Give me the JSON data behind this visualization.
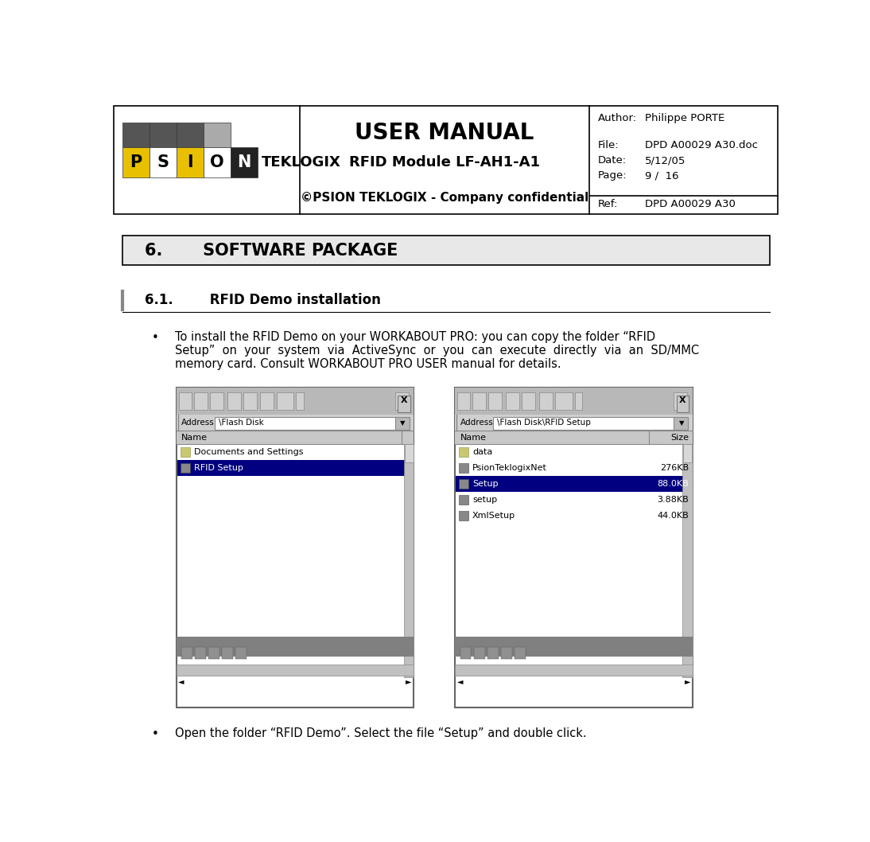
{
  "bg_color": "#ffffff",
  "header": {
    "title": "USER MANUAL",
    "subtitle": "RFID Module LF-AH1-A1",
    "confidential": "©PSION TEKLOGIX - Company confidential",
    "author_label": "Author:",
    "author_value": "Philippe PORTE",
    "file_label": "File:",
    "file_value": "DPD A00029 A30.doc",
    "date_label": "Date:",
    "date_value": "5/12/05",
    "page_label": "Page:",
    "page_value": "9 /  16",
    "ref_label": "Ref:",
    "ref_value": "DPD A00029 A30"
  },
  "section_title": "6.       SOFTWARE PACKAGE",
  "subsection_title": "6.1.        RFID Demo installation",
  "bullet1_line1": "To install the RFID Demo on your WORKABOUT PRO: you can copy the folder “RFID",
  "bullet1_line2": "Setup”  on  your  system  via  ActiveSync  or  you  can  execute  directly  via  an  SD/MMC",
  "bullet1_line3": "memory card. Consult WORKABOUT PRO USER manual for details.",
  "bullet2": "Open the folder “RFID Demo”. Select the file “Setup” and double click.",
  "img1_address": "\\Flash Disk",
  "img2_address": "\\Flash Disk\\RFID Setup",
  "img1_items": [
    "Documents and Settings",
    "RFID Setup"
  ],
  "img2_items": [
    "data",
    "PsionTeklogixNet",
    "Setup",
    "setup",
    "XmlSetup"
  ],
  "img2_sizes": [
    "",
    "276KB",
    "88.0KB",
    "3.88KB",
    "44.0KB"
  ],
  "img1_highlight": 1,
  "img2_highlight": 2
}
